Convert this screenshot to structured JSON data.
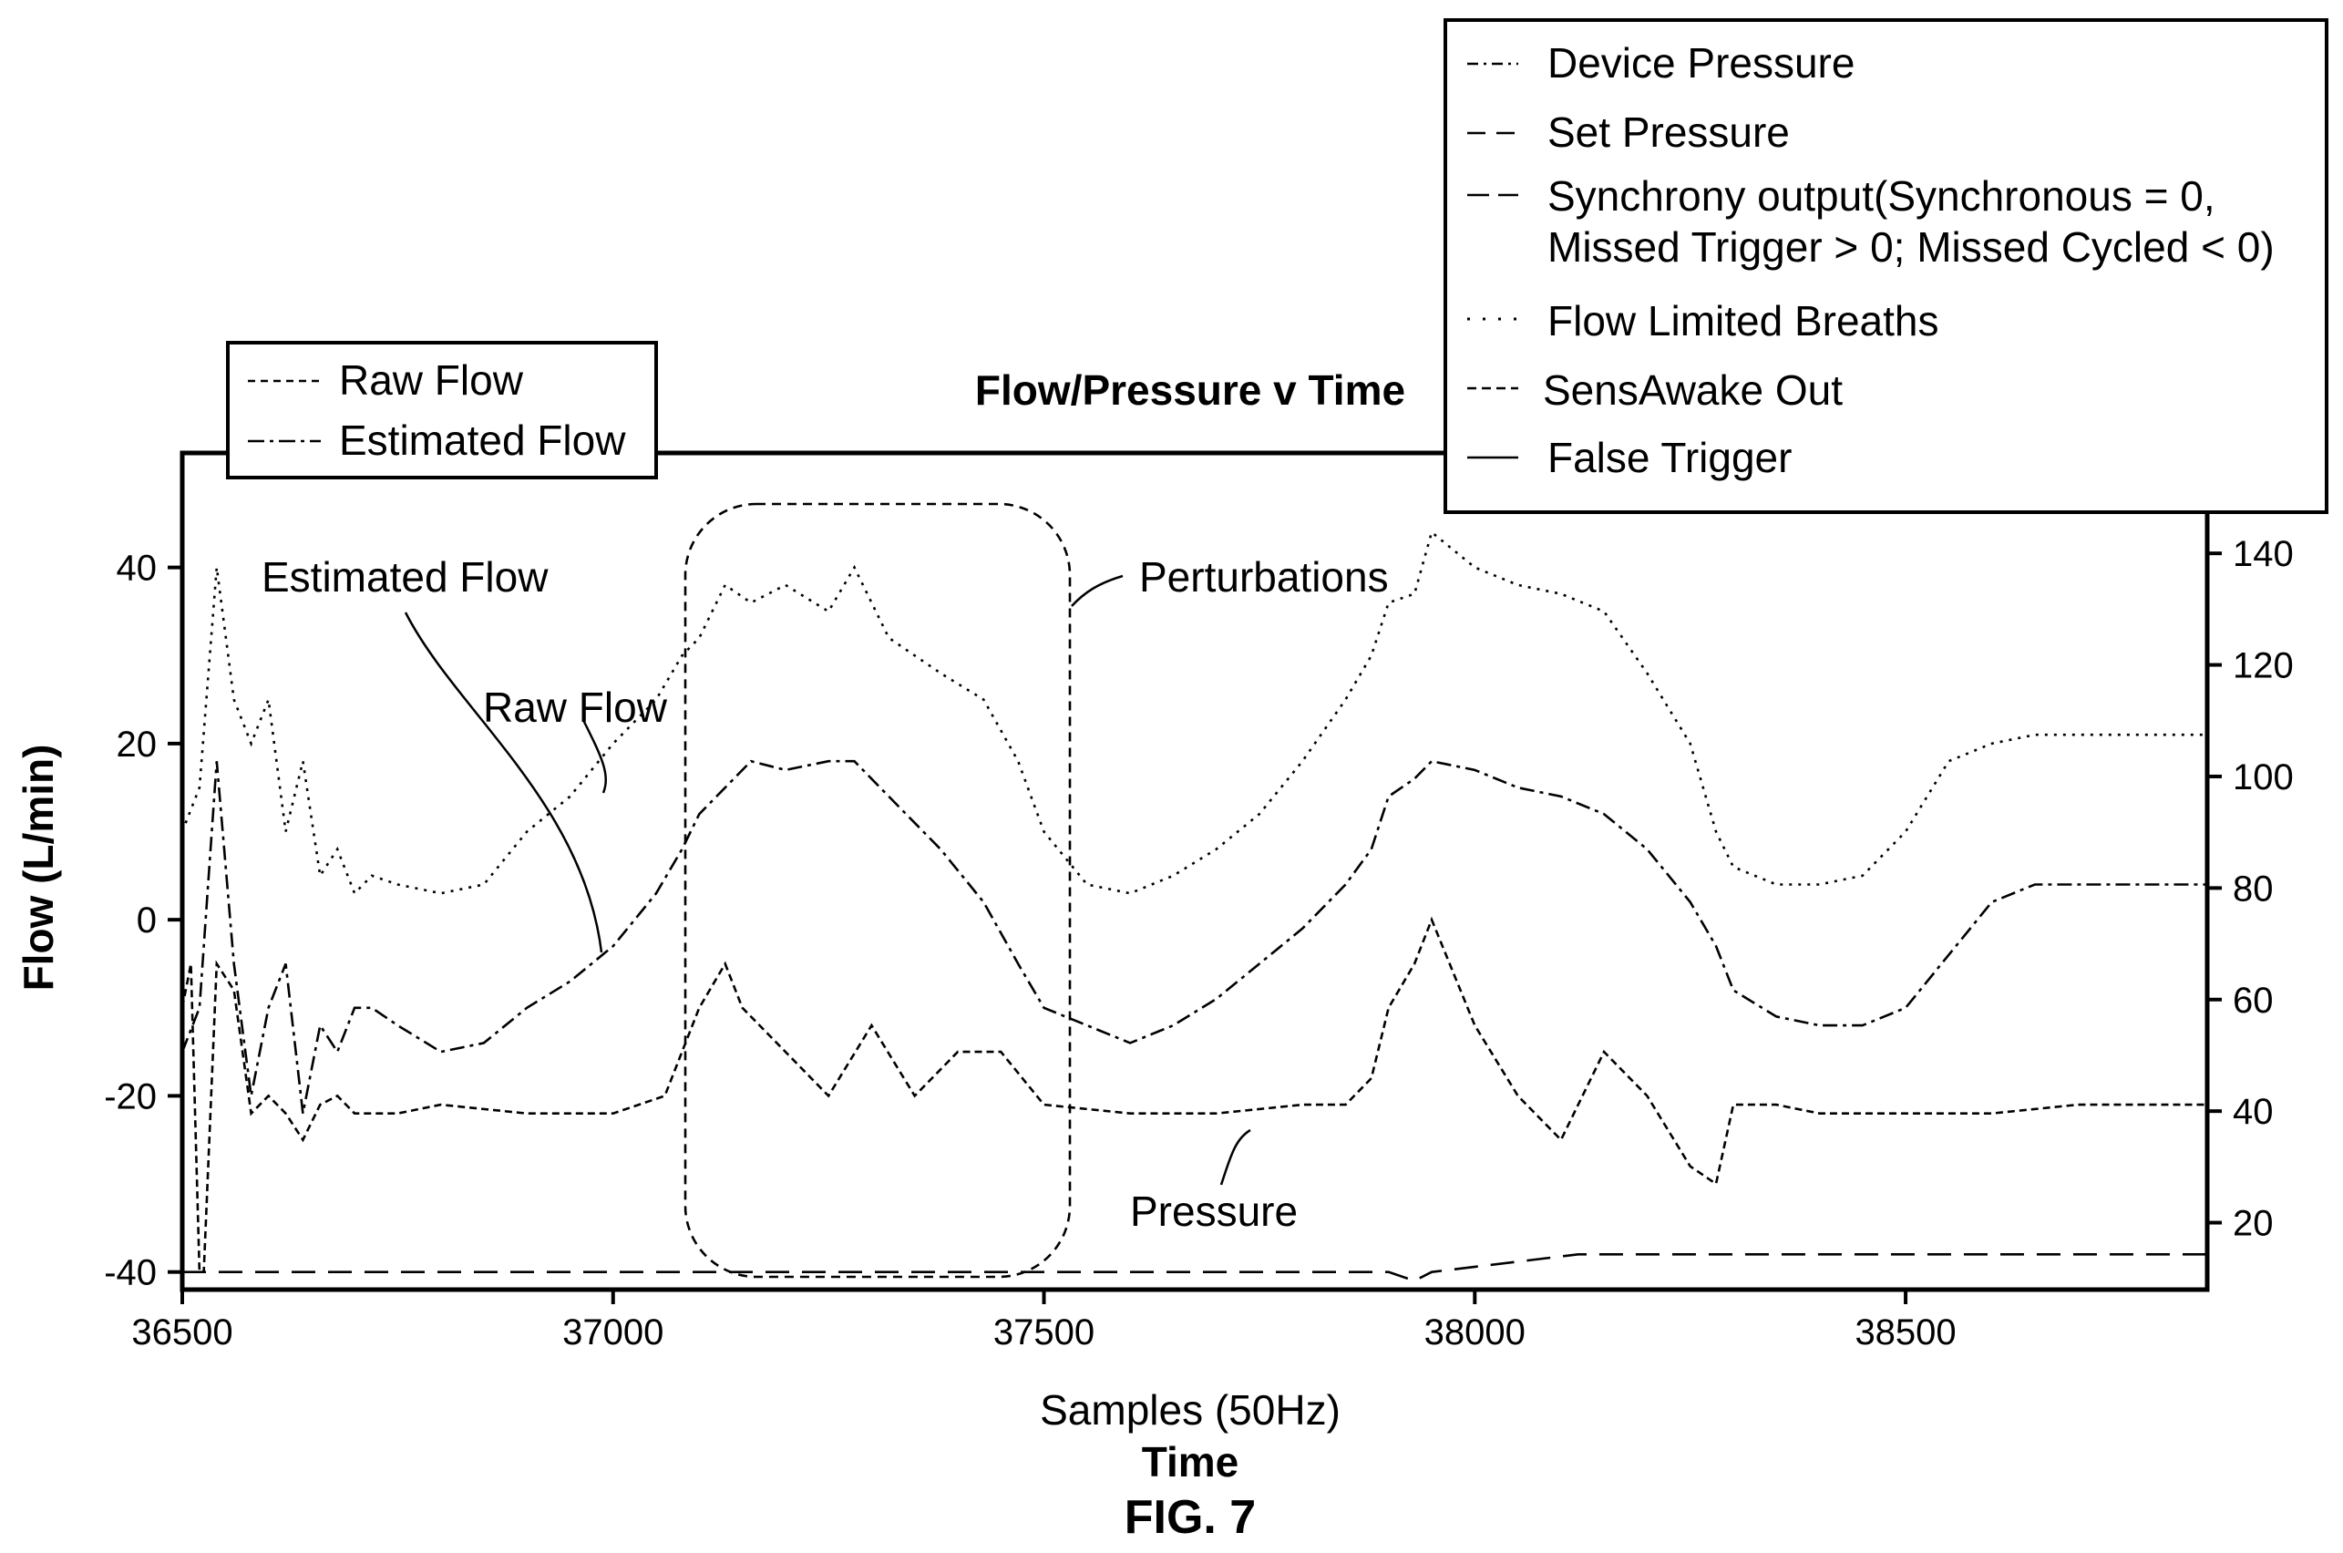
{
  "chart_data": {
    "type": "line",
    "title": "Flow/Pressure v Time",
    "xlabel": "Samples (50Hz)",
    "xlabel2": "Time",
    "ylabel": "Flow (L/min)",
    "figure_label": "FIG. 7",
    "xlim": [
      36500,
      38850
    ],
    "ylim": [
      -42,
      53
    ],
    "y2lim": [
      8,
      158
    ],
    "x_ticks": [
      "36500",
      "37000",
      "37500",
      "38000",
      "38500"
    ],
    "y_ticks": [
      "40",
      "20",
      "0",
      "-20",
      "-40"
    ],
    "y2_ticks": [
      "140",
      "120",
      "100",
      "80",
      "60",
      "40",
      "20"
    ],
    "legend_left": [
      "Raw Flow",
      "Estimated Flow"
    ],
    "legend_right": [
      "Device Pressure",
      "Set Pressure",
      "Synchrony output(Synchronous = 0,",
      "Missed Trigger > 0; Missed Cycled < 0)",
      "Flow Limited Breaths",
      "SensAwake Out",
      "False Trigger"
    ],
    "annotations": {
      "estimated_flow": "Estimated Flow",
      "raw_flow": "Raw Flow",
      "perturbations": "Perturbations",
      "pressure": "Pressure"
    },
    "series": [
      {
        "name": "Raw Flow",
        "axis": "left",
        "style": "dotted",
        "x": [
          36500,
          36520,
          36540,
          36560,
          36580,
          36600,
          36620,
          36640,
          36660,
          36680,
          36700,
          36720,
          36750,
          36800,
          36850,
          36900,
          36950,
          37000,
          37050,
          37080,
          37100,
          37130,
          37160,
          37200,
          37250,
          37280,
          37320,
          37380,
          37430,
          37470,
          37500,
          37550,
          37600,
          37650,
          37700,
          37750,
          37800,
          37850,
          37880,
          37900,
          37930,
          37950,
          38000,
          38050,
          38100,
          38150,
          38200,
          38250,
          38280,
          38300,
          38350,
          38400,
          38450,
          38500,
          38550,
          38600,
          38650,
          38700,
          38750,
          38800,
          38850
        ],
        "y": [
          10,
          15,
          40,
          25,
          20,
          25,
          10,
          18,
          5,
          8,
          3,
          5,
          4,
          3,
          4,
          10,
          14,
          20,
          25,
          30,
          32,
          38,
          36,
          38,
          35,
          40,
          32,
          28,
          25,
          18,
          10,
          4,
          3,
          5,
          8,
          12,
          18,
          25,
          30,
          36,
          37,
          44,
          40,
          38,
          37,
          35,
          28,
          20,
          10,
          6,
          4,
          4,
          5,
          10,
          18,
          20,
          21,
          21,
          21,
          21,
          21
        ]
      },
      {
        "name": "Estimated Flow",
        "axis": "left",
        "style": "dashdot",
        "x": [
          36500,
          36520,
          36540,
          36560,
          36580,
          36600,
          36620,
          36640,
          36660,
          36680,
          36700,
          36720,
          36750,
          36800,
          36850,
          36900,
          36950,
          37000,
          37050,
          37080,
          37100,
          37130,
          37160,
          37200,
          37250,
          37280,
          37320,
          37380,
          37430,
          37470,
          37500,
          37550,
          37600,
          37650,
          37700,
          37750,
          37800,
          37850,
          37880,
          37900,
          37930,
          37950,
          38000,
          38050,
          38100,
          38150,
          38200,
          38250,
          38280,
          38300,
          38350,
          38400,
          38450,
          38500,
          38550,
          38600,
          38650,
          38700,
          38750,
          38800,
          38850
        ],
        "y": [
          -15,
          -10,
          18,
          -5,
          -20,
          -10,
          -5,
          -22,
          -12,
          -15,
          -10,
          -10,
          -12,
          -15,
          -14,
          -10,
          -7,
          -3,
          3,
          8,
          12,
          15,
          18,
          17,
          18,
          18,
          14,
          8,
          2,
          -5,
          -10,
          -12,
          -14,
          -12,
          -9,
          -5,
          -1,
          4,
          8,
          14,
          16,
          18,
          17,
          15,
          14,
          12,
          8,
          2,
          -3,
          -8,
          -11,
          -12,
          -12,
          -10,
          -4,
          2,
          4,
          4,
          4,
          4,
          4
        ]
      },
      {
        "name": "Pressure",
        "axis": "left",
        "style": "dashed",
        "x": [
          36500,
          36510,
          36520,
          36525,
          36540,
          36560,
          36580,
          36600,
          36620,
          36640,
          36660,
          36680,
          36700,
          36750,
          36800,
          36900,
          37000,
          37060,
          37100,
          37130,
          37150,
          37200,
          37250,
          37300,
          37350,
          37400,
          37450,
          37500,
          37600,
          37700,
          37800,
          37850,
          37880,
          37900,
          37930,
          37950,
          38000,
          38050,
          38100,
          38150,
          38200,
          38250,
          38280,
          38300,
          38350,
          38400,
          38500,
          38600,
          38700,
          38800,
          38850
        ],
        "y": [
          -10,
          -5,
          -40,
          -40,
          -5,
          -8,
          -22,
          -20,
          -22,
          -25,
          -21,
          -20,
          -22,
          -22,
          -21,
          -22,
          -22,
          -20,
          -10,
          -5,
          -10,
          -15,
          -20,
          -12,
          -20,
          -15,
          -15,
          -21,
          -22,
          -22,
          -21,
          -21,
          -18,
          -10,
          -5,
          0,
          -12,
          -20,
          -25,
          -15,
          -20,
          -28,
          -30,
          -21,
          -21,
          -22,
          -22,
          -22,
          -21,
          -21,
          -21
        ]
      },
      {
        "name": "Set Pressure",
        "axis": "left",
        "style": "longdash",
        "x": [
          36500,
          37900,
          37930,
          37950,
          38120,
          38500,
          38850
        ],
        "y": [
          -40,
          -40,
          -41,
          -40,
          -38,
          -38,
          -38
        ]
      }
    ]
  }
}
